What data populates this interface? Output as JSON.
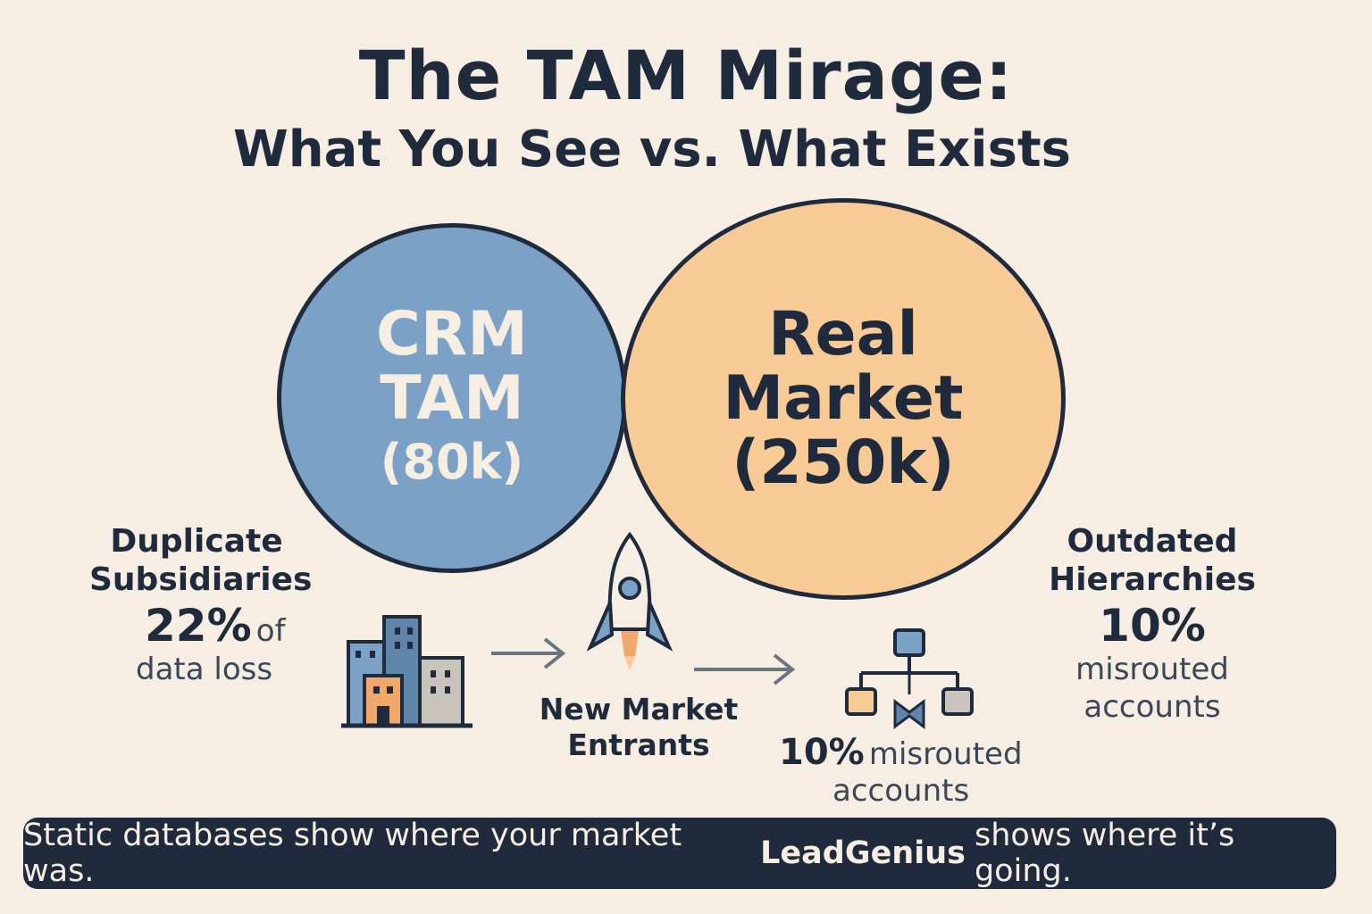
{
  "title": "The TAM Mirage:",
  "subtitle": "What You See vs. What Exists",
  "crm_circle": {
    "line1": "CRM",
    "line2": "TAM",
    "line3": "(80k)",
    "color": "#7ba2c6"
  },
  "real_circle": {
    "line1": "Real",
    "line2": "Market",
    "line3": "(250k)",
    "color": "#f8cb96"
  },
  "duplicate": {
    "label_line1": "Duplicate",
    "label_line2": "Subsidiaries",
    "pct": "22%",
    "pct_suffix": "of",
    "desc": "data loss"
  },
  "new_entrants": {
    "label_line1": "New Market",
    "label_line2": "Entrants"
  },
  "center_stat": {
    "pct": "10%",
    "desc_line1": "misrouted",
    "desc_line2": "accounts"
  },
  "outdated": {
    "label_line1": "Outdated",
    "label_line2": "Hierarchies",
    "pct": "10%",
    "desc_line1": "misrouted",
    "desc_line2": "accounts"
  },
  "footer": {
    "text_before": "Static databases show where your market was.",
    "brand": "LeadGenius",
    "text_after": "shows where it’s going."
  },
  "icons": [
    "buildings-icon",
    "arrow-right-icon",
    "rocket-icon",
    "org-chart-icon"
  ],
  "colors": {
    "background": "#f6ede3",
    "navy": "#1f2b3d",
    "blue": "#7ba2c6",
    "orange": "#f8cb96",
    "gray": "#c9c4bc"
  }
}
